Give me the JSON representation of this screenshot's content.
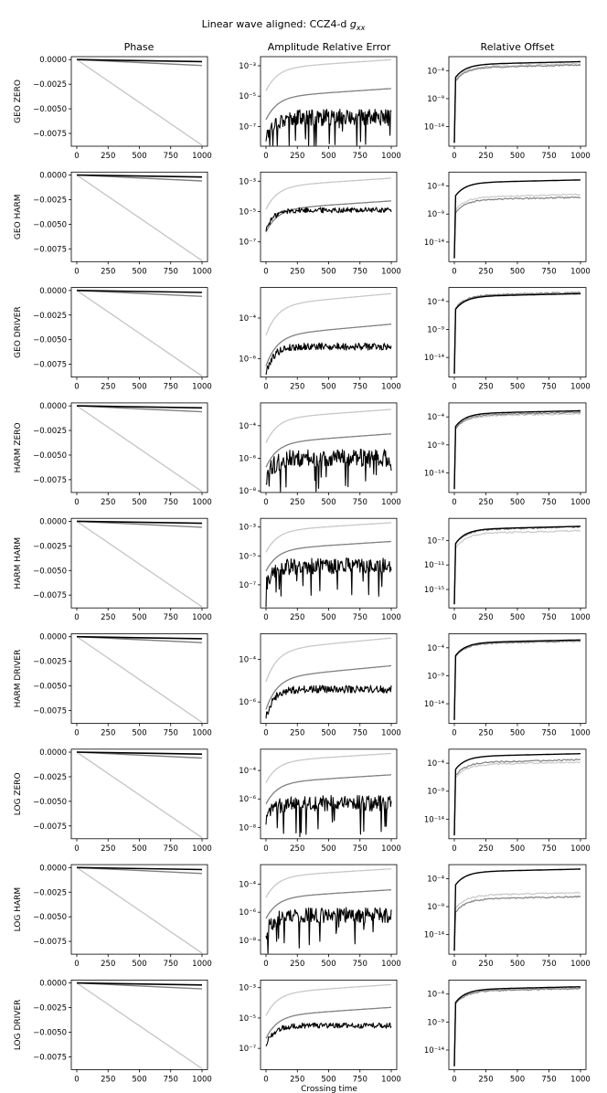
{
  "chart_data": {
    "type": "line",
    "title": "Linear wave aligned: CCZ4-d",
    "title_math": "g",
    "title_math_sub": "xx",
    "column_titles": [
      "Phase",
      "Amplitude Relative Error",
      "Relative Offset"
    ],
    "xlabel": "Crossing time",
    "xlim": [
      0,
      1000
    ],
    "x_ticks": [
      0,
      250,
      500,
      750,
      1000
    ],
    "x_tick_labels": [
      "0",
      "250",
      "500",
      "750",
      "1000"
    ],
    "series_colors": [
      "#c8c8c8",
      "#808080",
      "#000000"
    ],
    "phase_ylim": [
      -0.0088,
      0.0003
    ],
    "phase_ticks": [
      0.0,
      -0.0025,
      -0.005,
      -0.0075
    ],
    "phase_tick_labels": [
      "0.0000",
      "−0.0025",
      "−0.0050",
      "−0.0075"
    ],
    "phase_series": [
      {
        "name": "light",
        "values_at_end": -0.0087
      },
      {
        "name": "mid",
        "values_at_end": -0.0006
      },
      {
        "name": "dark",
        "values_at_end": -0.0002
      }
    ],
    "rows": [
      {
        "label": "GEO ZERO",
        "amp": {
          "ylim_log": [
            -8.3,
            -2.4
          ],
          "ticks": [
            -7,
            -5,
            -3
          ],
          "light_end": -2.6,
          "mid_end": -4.5,
          "dark_level": -6.4,
          "dark_noise": "high"
        },
        "off": {
          "ylim_log": [
            -17.5,
            -1.5
          ],
          "ticks": [
            -14,
            -9,
            -4
          ],
          "light_end": -2.8,
          "mid_end": -3.0,
          "dark_end": -2.4
        }
      },
      {
        "label": "GEO HARM",
        "amp": {
          "ylim_log": [
            -8.3,
            -2.4
          ],
          "ticks": [
            -7,
            -5,
            -3
          ],
          "light_end": -2.8,
          "mid_end": -4.3,
          "dark_level": -4.9,
          "dark_noise": "low"
        },
        "off": {
          "ylim_log": [
            -17.5,
            -1.5
          ],
          "ticks": [
            -14,
            -9,
            -4
          ],
          "light_end": -5.5,
          "mid_end": -6.0,
          "dark_end": -2.9
        }
      },
      {
        "label": "GEO DRIVER",
        "amp": {
          "ylim_log": [
            -6.9,
            -2.5
          ],
          "ticks": [
            -6,
            -4
          ],
          "light_end": -2.8,
          "mid_end": -4.3,
          "dark_level": -5.4,
          "dark_noise": "low"
        },
        "off": {
          "ylim_log": [
            -17.5,
            -1.5
          ],
          "ticks": [
            -14,
            -9,
            -4
          ],
          "light_end": -2.6,
          "mid_end": -2.4,
          "dark_end": -2.6
        }
      },
      {
        "label": "HARM ZERO",
        "amp": {
          "ylim_log": [
            -8.1,
            -2.6
          ],
          "ticks": [
            -8,
            -6,
            -4
          ],
          "light_end": -3.0,
          "mid_end": -4.5,
          "dark_level": -6.0,
          "dark_noise": "high"
        },
        "off": {
          "ylim_log": [
            -17.5,
            -1.5
          ],
          "ticks": [
            -14,
            -9,
            -4
          ],
          "light_end": -3.4,
          "mid_end": -3.2,
          "dark_end": -2.9
        }
      },
      {
        "label": "HARM HARM",
        "amp": {
          "ylim_log": [
            -8.6,
            -2.4
          ],
          "ticks": [
            -7,
            -5,
            -3
          ],
          "light_end": -2.7,
          "mid_end": -4.0,
          "dark_level": -5.7,
          "dark_noise": "high"
        },
        "off": {
          "ylim_log": [
            -18.0,
            -3.4
          ],
          "ticks": [
            -15,
            -11,
            -7
          ],
          "light_end": -5.4,
          "mid_end": -4.8,
          "dark_end": -4.7
        }
      },
      {
        "label": "HARM DRIVER",
        "amp": {
          "ylim_log": [
            -7.0,
            -2.8
          ],
          "ticks": [
            -6,
            -4
          ],
          "light_end": -3.0,
          "mid_end": -4.3,
          "dark_level": -5.4,
          "dark_noise": "low"
        },
        "off": {
          "ylim_log": [
            -17.5,
            -1.5
          ],
          "ticks": [
            -14,
            -9,
            -4
          ],
          "light_end": -2.8,
          "mid_end": -2.8,
          "dark_end": -2.6
        }
      },
      {
        "label": "LOG ZERO",
        "amp": {
          "ylim_log": [
            -8.8,
            -2.5
          ],
          "ticks": [
            -8,
            -6,
            -4
          ],
          "light_end": -2.8,
          "mid_end": -4.3,
          "dark_level": -6.3,
          "dark_noise": "high"
        },
        "off": {
          "ylim_log": [
            -17.5,
            -1.5
          ],
          "ticks": [
            -14,
            -9,
            -4
          ],
          "light_end": -3.8,
          "mid_end": -3.4,
          "dark_end": -2.3
        }
      },
      {
        "label": "LOG HARM",
        "amp": {
          "ylim_log": [
            -9.0,
            -2.6
          ],
          "ticks": [
            -8,
            -6,
            -4
          ],
          "light_end": -2.9,
          "mid_end": -4.4,
          "dark_level": -6.2,
          "dark_noise": "high"
        },
        "off": {
          "ylim_log": [
            -17.5,
            -1.5
          ],
          "ticks": [
            -14,
            -9,
            -4
          ],
          "light_end": -6.5,
          "mid_end": -7.2,
          "dark_end": -2.3
        }
      },
      {
        "label": "LOG DRIVER",
        "amp": {
          "ylim_log": [
            -8.4,
            -2.5
          ],
          "ticks": [
            -7,
            -5,
            -3
          ],
          "light_end": -2.8,
          "mid_end": -4.3,
          "dark_level": -5.5,
          "dark_noise": "low"
        },
        "off": {
          "ylim_log": [
            -17.5,
            -1.5
          ],
          "ticks": [
            -14,
            -9,
            -4
          ],
          "light_end": -2.9,
          "mid_end": -3.0,
          "dark_end": -2.7
        }
      }
    ]
  }
}
